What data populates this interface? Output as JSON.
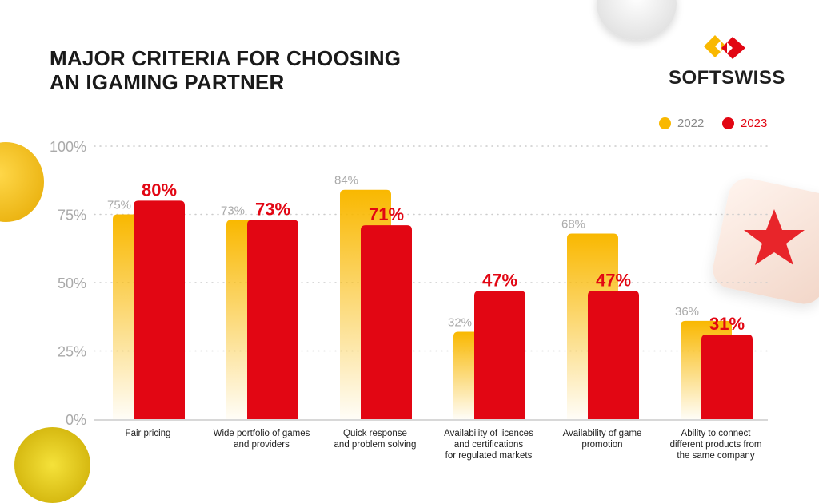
{
  "title_line1": "MAJOR CRITERIA FOR CHOOSING",
  "title_line2": "AN IGAMING PARTNER",
  "brand": "SOFTSWISS",
  "colors": {
    "y2022": "#F9B800",
    "y2023": "#E20613",
    "grid": "#cccccc",
    "tick": "#aaaaaa"
  },
  "chart_data": {
    "type": "bar",
    "title": "MAJOR CRITERIA FOR CHOOSING AN IGAMING PARTNER",
    "categories": [
      [
        "Fair pricing"
      ],
      [
        "Wide portfolio of games",
        "and providers"
      ],
      [
        "Quick response",
        "and problem solving"
      ],
      [
        "Availability of licences",
        "and certifications",
        "for regulated markets"
      ],
      [
        "Availability of game",
        "promotion"
      ],
      [
        "Ability to connect",
        "different products from",
        "the same company"
      ]
    ],
    "series": [
      {
        "name": "2022",
        "values": [
          75,
          73,
          84,
          32,
          68,
          36
        ],
        "labels": [
          "75%",
          "73%",
          "84%",
          "32%",
          "68%",
          "36%"
        ]
      },
      {
        "name": "2023",
        "values": [
          80,
          73,
          71,
          47,
          47,
          31
        ],
        "labels": [
          "80%",
          "73%",
          "71%",
          "47%",
          "47%",
          "31%"
        ]
      }
    ],
    "yticks": [
      "0%",
      "25%",
      "50%",
      "75%",
      "100%"
    ],
    "ylim": [
      0,
      100
    ],
    "grid": true,
    "legend": "top-right"
  }
}
